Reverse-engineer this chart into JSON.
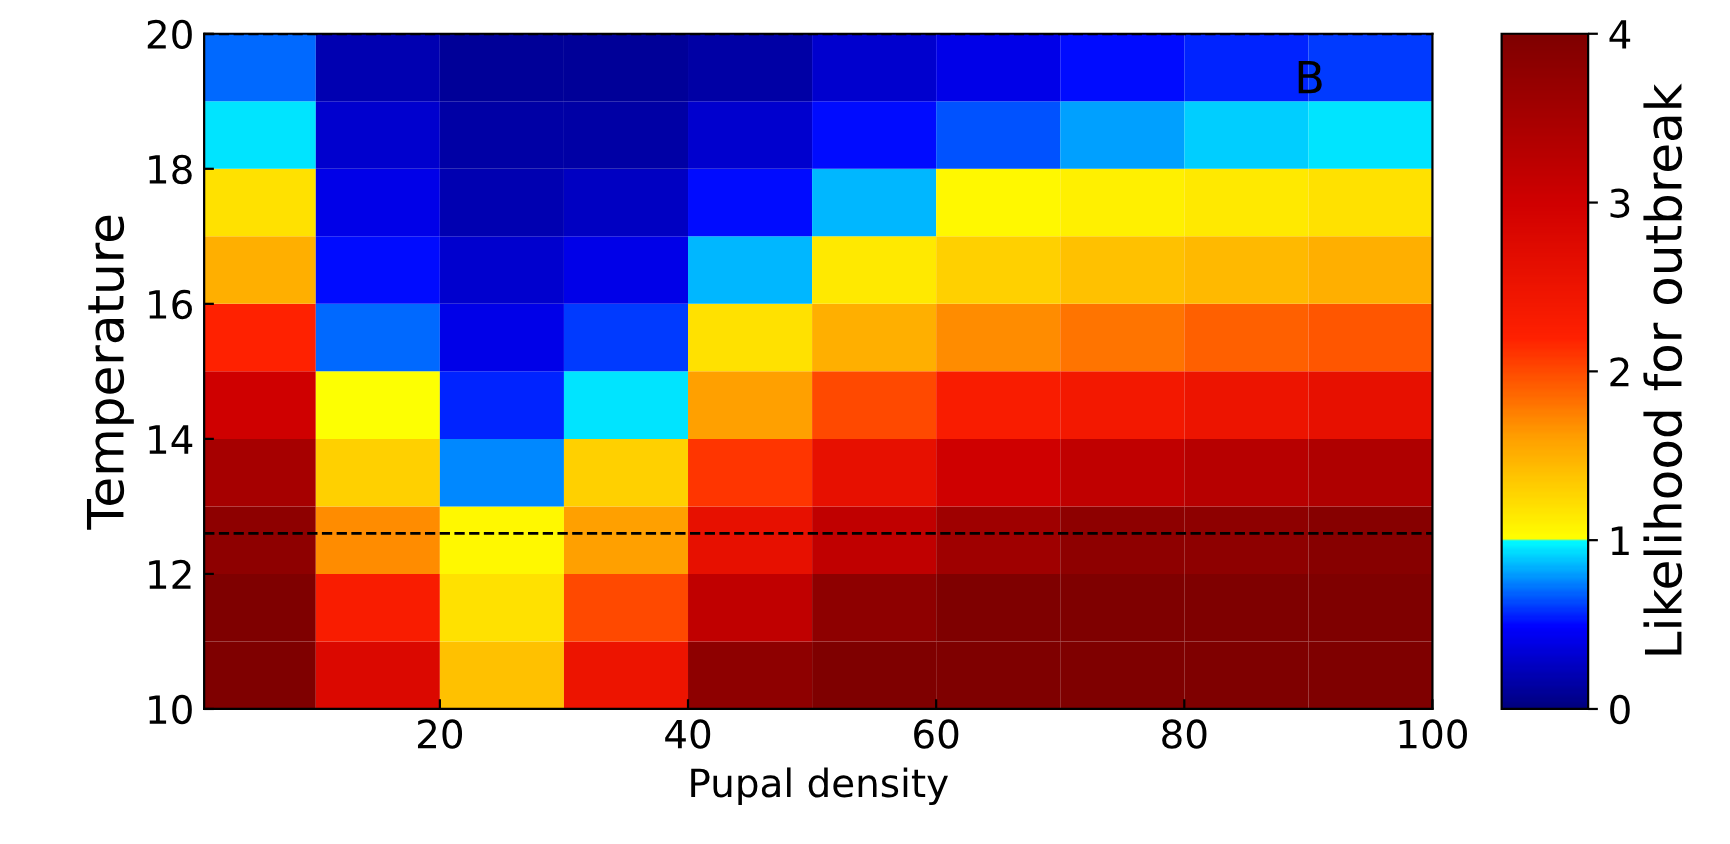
{
  "chart_data": {
    "type": "heatmap",
    "xlabel": "Pupal density",
    "ylabel": "Temperature",
    "clabel": "Likelihood for outbreak",
    "x": [
      5,
      15,
      25,
      35,
      45,
      55,
      65,
      75,
      85,
      95
    ],
    "y": [
      19.5,
      18.5,
      17.5,
      16.5,
      15.5,
      14.5,
      13.5,
      12.5,
      11.5,
      10.5
    ],
    "cells": [
      [
        0.7,
        0.2,
        0.1,
        0.1,
        0.15,
        0.3,
        0.4,
        0.5,
        0.55,
        0.6
      ],
      [
        0.95,
        0.3,
        0.15,
        0.15,
        0.3,
        0.5,
        0.65,
        0.8,
        0.9,
        0.95
      ],
      [
        1.2,
        0.4,
        0.2,
        0.25,
        0.5,
        0.85,
        1.05,
        1.1,
        1.15,
        1.2
      ],
      [
        1.5,
        0.5,
        0.3,
        0.4,
        0.85,
        1.15,
        1.3,
        1.4,
        1.45,
        1.5
      ],
      [
        2.2,
        0.7,
        0.4,
        0.6,
        1.2,
        1.5,
        1.7,
        1.8,
        1.9,
        1.95
      ],
      [
        3,
        1.0,
        0.55,
        0.95,
        1.6,
        2,
        2.3,
        2.4,
        2.5,
        2.6
      ],
      [
        3.5,
        1.3,
        0.75,
        1.3,
        2.1,
        2.6,
        3,
        3.2,
        3.3,
        3.4
      ],
      [
        3.8,
        1.7,
        1.05,
        1.6,
        2.6,
        3.2,
        3.6,
        3.8,
        3.8,
        3.9
      ],
      [
        4,
        2.3,
        1.2,
        2.0,
        3.2,
        3.8,
        4,
        4,
        4,
        4
      ],
      [
        4,
        2.8,
        1.4,
        2.5,
        3.8,
        4,
        4,
        4,
        4,
        4
      ]
    ],
    "xlim": [
      1,
      100
    ],
    "ylim": [
      10,
      20
    ],
    "xticks": [
      20,
      40,
      60,
      80,
      100
    ],
    "yticks": [
      10,
      12,
      14,
      16,
      18,
      20
    ],
    "clim": [
      0,
      4
    ],
    "cticks": [
      0,
      1,
      2,
      3,
      4
    ],
    "ref_lines": [
      {
        "axis": "y",
        "value": 20,
        "line_style": "dashed",
        "color": "#000000"
      },
      {
        "axis": "y",
        "value": 12.6,
        "line_style": "dashed",
        "color": "#000000"
      }
    ],
    "annotations": [
      "B"
    ]
  }
}
